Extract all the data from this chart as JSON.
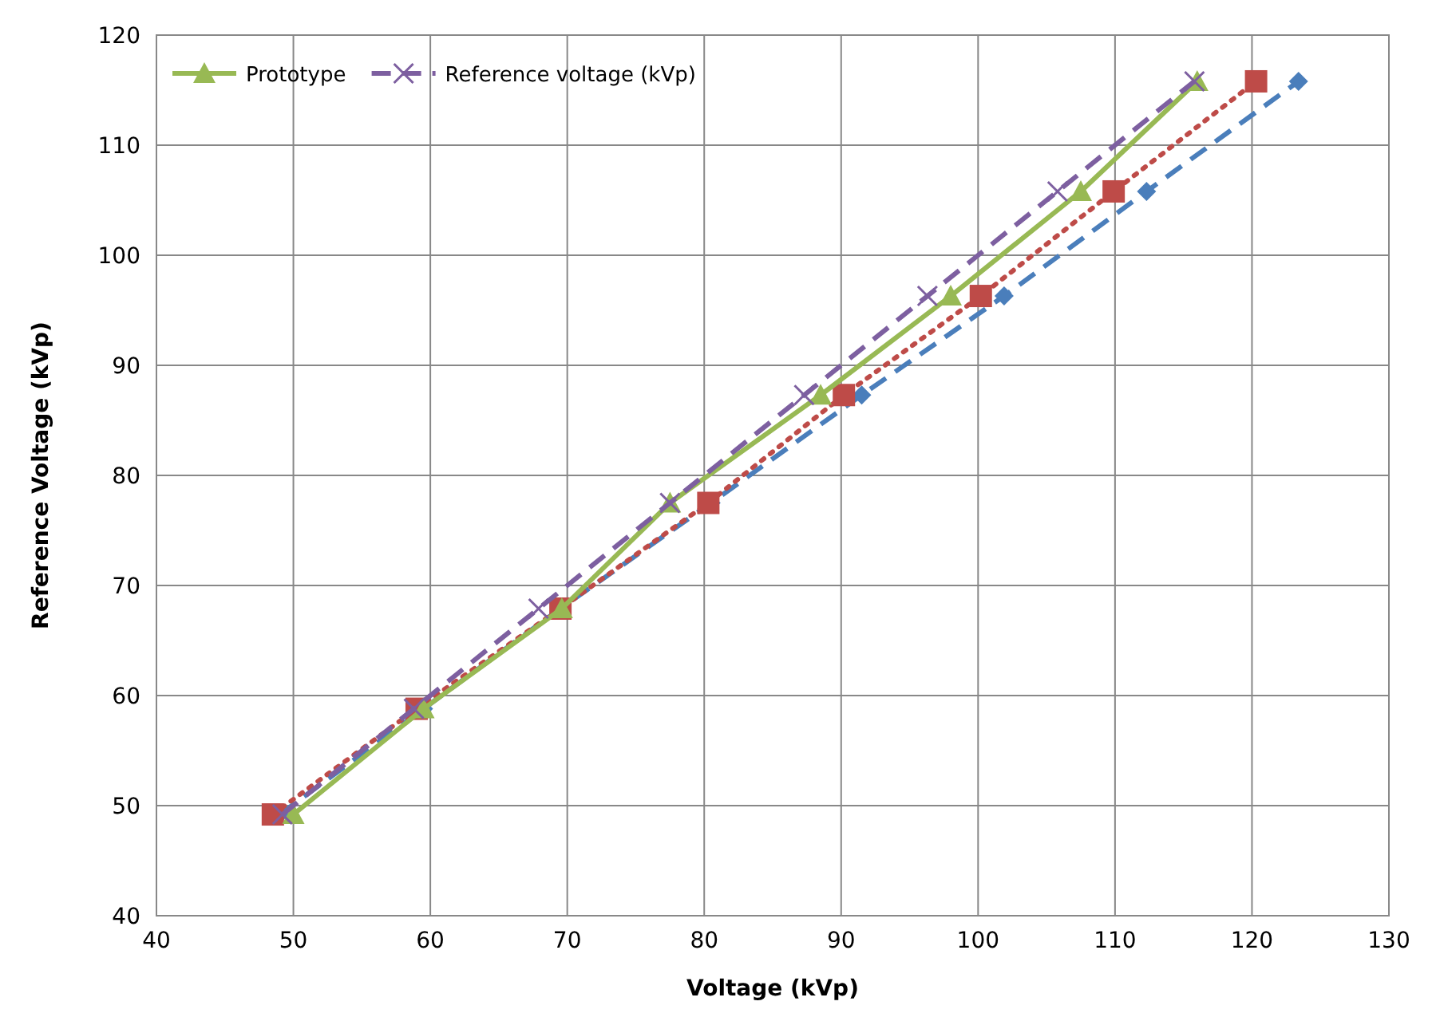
{
  "chart_data": {
    "type": "line",
    "xlabel": "Voltage (kVp)",
    "ylabel": "Reference Voltage (kVp)",
    "xlim": [
      40,
      130
    ],
    "xticks": [
      40,
      50,
      60,
      70,
      80,
      90,
      100,
      110,
      120,
      130
    ],
    "ylim": [
      40,
      120
    ],
    "yticks": [
      40,
      50,
      60,
      70,
      80,
      90,
      100,
      110,
      120
    ],
    "grid": true,
    "legend": "top left",
    "series": [
      {
        "color": "#4a7ebb",
        "marker": "diamond",
        "line_style": "dashed",
        "x": [
          49,
          59.5,
          69.5,
          80.5,
          91.5,
          101.9,
          112.3,
          123.4
        ],
        "values": [
          49.2,
          58.8,
          67.9,
          77.5,
          87.3,
          96.3,
          105.8,
          115.8
        ]
      },
      {
        "color": "#be4b48",
        "marker": "square",
        "line_style": "dotted",
        "x": [
          48.5,
          59,
          69.5,
          80.3,
          90.2,
          100.2,
          109.9,
          120.3
        ],
        "values": [
          49.2,
          58.8,
          67.9,
          77.5,
          87.3,
          96.3,
          105.8,
          115.8
        ]
      },
      {
        "name": "Prototype",
        "color": "#98b954",
        "marker": "triangle",
        "line_style": "solid",
        "x": [
          50,
          59.5,
          69.6,
          77.5,
          88.5,
          98,
          107.5,
          116
        ],
        "values": [
          49.2,
          58.8,
          67.9,
          77.5,
          87.3,
          96.3,
          105.8,
          115.8
        ]
      },
      {
        "name": "Reference voltage (kVp)",
        "color": "#7d5fa0",
        "marker": "cross",
        "line_style": "dashed",
        "x": [
          49.2,
          58.8,
          67.9,
          77.5,
          87.3,
          96.3,
          105.8,
          115.8
        ],
        "values": [
          49.2,
          58.8,
          67.9,
          77.5,
          87.3,
          96.3,
          105.8,
          115.8
        ]
      }
    ]
  }
}
